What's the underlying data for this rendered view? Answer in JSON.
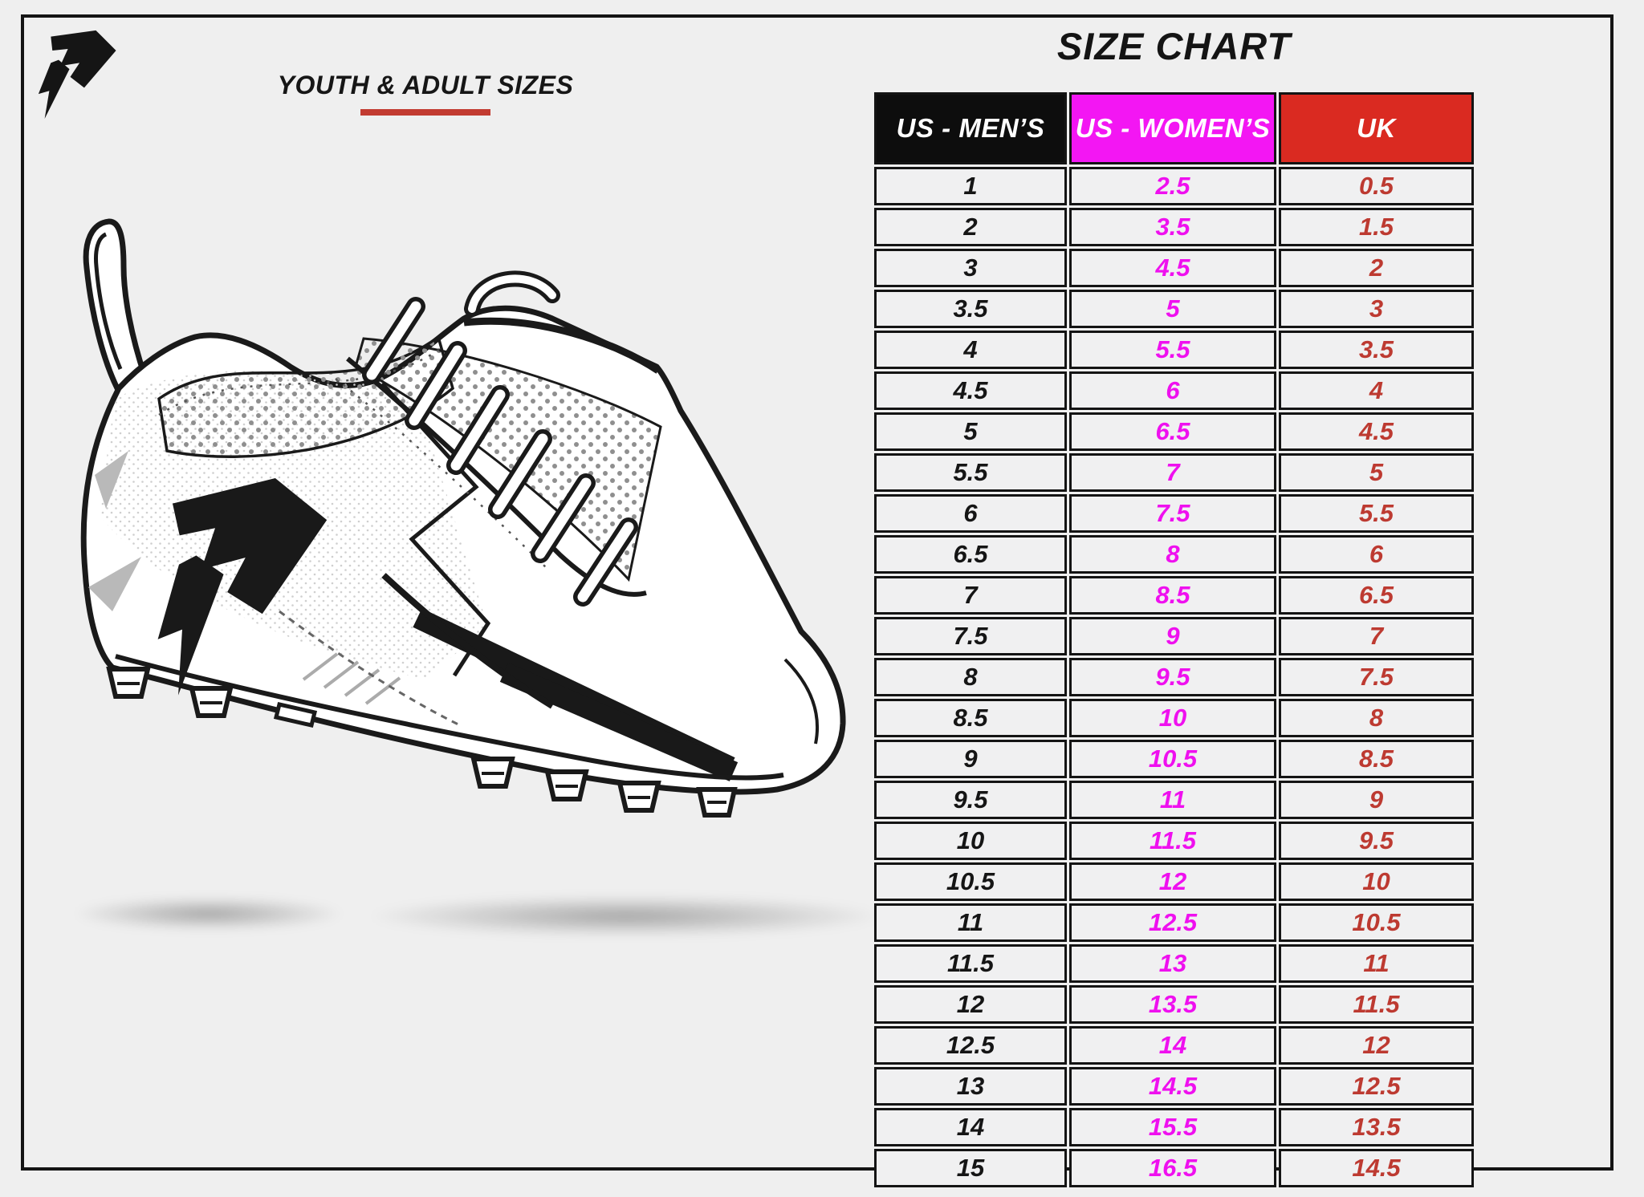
{
  "header": {
    "title": "SIZE CHART",
    "subtitle": "YOUTH & ADULT SIZES"
  },
  "brand": {
    "logo": "phenom-arrow-p-logo"
  },
  "illustration": {
    "name": "football-cleat-line-art",
    "has_shadow": true
  },
  "colors": {
    "background": "#efefef",
    "frame_border": "#141414",
    "accent_underline": "#c23b31",
    "mens_header_bg": "#0d0d0d",
    "womens_header_bg": "#f316f3",
    "uk_header_bg": "#da2a21"
  },
  "chart_data": {
    "type": "table",
    "title": "SIZE CHART",
    "columns": [
      {
        "label": "US - MEN’S",
        "header_bg": "#0d0d0d",
        "header_text": "#ffffff",
        "value_color": "#151515"
      },
      {
        "label": "US - WOMEN’S",
        "header_bg": "#f316f3",
        "header_text": "#ffffff",
        "value_color": "#ef10ef"
      },
      {
        "label": "UK",
        "header_bg": "#da2a21",
        "header_text": "#ffffff",
        "value_color": "#bd3a31"
      }
    ],
    "rows": [
      [
        "1",
        "2.5",
        "0.5"
      ],
      [
        "2",
        "3.5",
        "1.5"
      ],
      [
        "3",
        "4.5",
        "2"
      ],
      [
        "3.5",
        "5",
        "3"
      ],
      [
        "4",
        "5.5",
        "3.5"
      ],
      [
        "4.5",
        "6",
        "4"
      ],
      [
        "5",
        "6.5",
        "4.5"
      ],
      [
        "5.5",
        "7",
        "5"
      ],
      [
        "6",
        "7.5",
        "5.5"
      ],
      [
        "6.5",
        "8",
        "6"
      ],
      [
        "7",
        "8.5",
        "6.5"
      ],
      [
        "7.5",
        "9",
        "7"
      ],
      [
        "8",
        "9.5",
        "7.5"
      ],
      [
        "8.5",
        "10",
        "8"
      ],
      [
        "9",
        "10.5",
        "8.5"
      ],
      [
        "9.5",
        "11",
        "9"
      ],
      [
        "10",
        "11.5",
        "9.5"
      ],
      [
        "10.5",
        "12",
        "10"
      ],
      [
        "11",
        "12.5",
        "10.5"
      ],
      [
        "11.5",
        "13",
        "11"
      ],
      [
        "12",
        "13.5",
        "11.5"
      ],
      [
        "12.5",
        "14",
        "12"
      ],
      [
        "13",
        "14.5",
        "12.5"
      ],
      [
        "14",
        "15.5",
        "13.5"
      ],
      [
        "15",
        "16.5",
        "14.5"
      ]
    ]
  }
}
